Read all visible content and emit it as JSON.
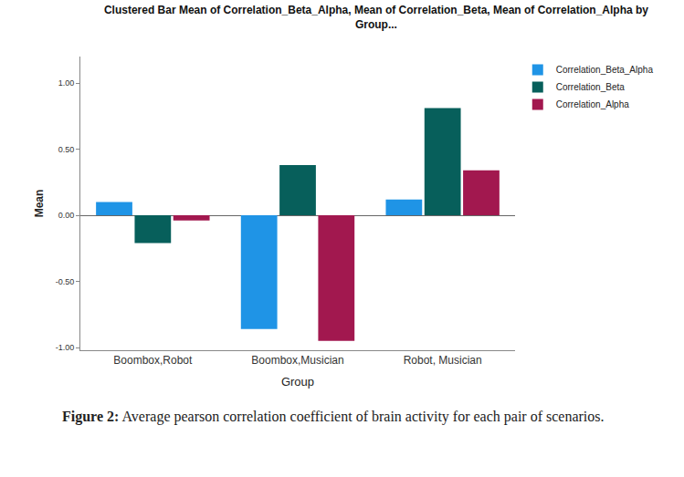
{
  "chart_data": {
    "type": "bar",
    "title": "Clustered Bar Mean of Correlation_Beta_Alpha, Mean of Correlation_Beta, Mean of Correlation_Alpha by Group...",
    "x_label": "Group",
    "y_label": "Mean",
    "categories": [
      "Boombox,Robot",
      "Boombox,Musician",
      "Robot, Musician"
    ],
    "series": [
      {
        "name": "Correlation_Beta_Alpha",
        "color": "#1f94e6",
        "values": [
          0.1,
          -0.86,
          0.12
        ]
      },
      {
        "name": "Correlation_Beta",
        "color": "#075f5b",
        "values": [
          -0.21,
          0.38,
          0.81
        ]
      },
      {
        "name": "Correlation_Alpha",
        "color": "#a2184f",
        "values": [
          -0.04,
          -0.95,
          0.34
        ]
      }
    ],
    "ylim": [
      -1.02,
      1.2
    ],
    "yticks": [
      {
        "value": -1,
        "label": "-1.00"
      },
      {
        "value": -0.5,
        "label": "-0.50"
      },
      {
        "value": 0,
        "label": "0.00"
      },
      {
        "value": 0.5,
        "label": "0.50"
      },
      {
        "value": 1,
        "label": "1.00"
      }
    ],
    "grid": false,
    "legend": "top-right"
  },
  "caption": {
    "label": "Figure 2:",
    "text": "Average pearson correlation coefficient of brain activity for each pair of scenarios."
  }
}
